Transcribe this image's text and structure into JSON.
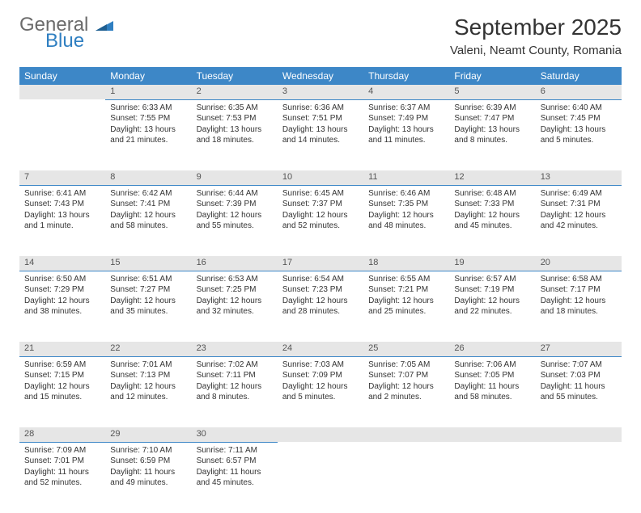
{
  "logo": {
    "general": "General",
    "blue": "Blue"
  },
  "title": "September 2025",
  "location": "Valeni, Neamt County, Romania",
  "colors": {
    "header_bg": "#3d87c7",
    "header_text": "#ffffff",
    "daynum_bg": "#e6e6e6",
    "daynum_border": "#3d87c7",
    "text": "#333333",
    "logo_gray": "#6b6b6b",
    "logo_blue": "#2f7fc1"
  },
  "weekdays": [
    "Sunday",
    "Monday",
    "Tuesday",
    "Wednesday",
    "Thursday",
    "Friday",
    "Saturday"
  ],
  "weeks": [
    [
      null,
      {
        "n": "1",
        "sr": "6:33 AM",
        "ss": "7:55 PM",
        "dl": "13 hours and 21 minutes."
      },
      {
        "n": "2",
        "sr": "6:35 AM",
        "ss": "7:53 PM",
        "dl": "13 hours and 18 minutes."
      },
      {
        "n": "3",
        "sr": "6:36 AM",
        "ss": "7:51 PM",
        "dl": "13 hours and 14 minutes."
      },
      {
        "n": "4",
        "sr": "6:37 AM",
        "ss": "7:49 PM",
        "dl": "13 hours and 11 minutes."
      },
      {
        "n": "5",
        "sr": "6:39 AM",
        "ss": "7:47 PM",
        "dl": "13 hours and 8 minutes."
      },
      {
        "n": "6",
        "sr": "6:40 AM",
        "ss": "7:45 PM",
        "dl": "13 hours and 5 minutes."
      }
    ],
    [
      {
        "n": "7",
        "sr": "6:41 AM",
        "ss": "7:43 PM",
        "dl": "13 hours and 1 minute."
      },
      {
        "n": "8",
        "sr": "6:42 AM",
        "ss": "7:41 PM",
        "dl": "12 hours and 58 minutes."
      },
      {
        "n": "9",
        "sr": "6:44 AM",
        "ss": "7:39 PM",
        "dl": "12 hours and 55 minutes."
      },
      {
        "n": "10",
        "sr": "6:45 AM",
        "ss": "7:37 PM",
        "dl": "12 hours and 52 minutes."
      },
      {
        "n": "11",
        "sr": "6:46 AM",
        "ss": "7:35 PM",
        "dl": "12 hours and 48 minutes."
      },
      {
        "n": "12",
        "sr": "6:48 AM",
        "ss": "7:33 PM",
        "dl": "12 hours and 45 minutes."
      },
      {
        "n": "13",
        "sr": "6:49 AM",
        "ss": "7:31 PM",
        "dl": "12 hours and 42 minutes."
      }
    ],
    [
      {
        "n": "14",
        "sr": "6:50 AM",
        "ss": "7:29 PM",
        "dl": "12 hours and 38 minutes."
      },
      {
        "n": "15",
        "sr": "6:51 AM",
        "ss": "7:27 PM",
        "dl": "12 hours and 35 minutes."
      },
      {
        "n": "16",
        "sr": "6:53 AM",
        "ss": "7:25 PM",
        "dl": "12 hours and 32 minutes."
      },
      {
        "n": "17",
        "sr": "6:54 AM",
        "ss": "7:23 PM",
        "dl": "12 hours and 28 minutes."
      },
      {
        "n": "18",
        "sr": "6:55 AM",
        "ss": "7:21 PM",
        "dl": "12 hours and 25 minutes."
      },
      {
        "n": "19",
        "sr": "6:57 AM",
        "ss": "7:19 PM",
        "dl": "12 hours and 22 minutes."
      },
      {
        "n": "20",
        "sr": "6:58 AM",
        "ss": "7:17 PM",
        "dl": "12 hours and 18 minutes."
      }
    ],
    [
      {
        "n": "21",
        "sr": "6:59 AM",
        "ss": "7:15 PM",
        "dl": "12 hours and 15 minutes."
      },
      {
        "n": "22",
        "sr": "7:01 AM",
        "ss": "7:13 PM",
        "dl": "12 hours and 12 minutes."
      },
      {
        "n": "23",
        "sr": "7:02 AM",
        "ss": "7:11 PM",
        "dl": "12 hours and 8 minutes."
      },
      {
        "n": "24",
        "sr": "7:03 AM",
        "ss": "7:09 PM",
        "dl": "12 hours and 5 minutes."
      },
      {
        "n": "25",
        "sr": "7:05 AM",
        "ss": "7:07 PM",
        "dl": "12 hours and 2 minutes."
      },
      {
        "n": "26",
        "sr": "7:06 AM",
        "ss": "7:05 PM",
        "dl": "11 hours and 58 minutes."
      },
      {
        "n": "27",
        "sr": "7:07 AM",
        "ss": "7:03 PM",
        "dl": "11 hours and 55 minutes."
      }
    ],
    [
      {
        "n": "28",
        "sr": "7:09 AM",
        "ss": "7:01 PM",
        "dl": "11 hours and 52 minutes."
      },
      {
        "n": "29",
        "sr": "7:10 AM",
        "ss": "6:59 PM",
        "dl": "11 hours and 49 minutes."
      },
      {
        "n": "30",
        "sr": "7:11 AM",
        "ss": "6:57 PM",
        "dl": "11 hours and 45 minutes."
      },
      null,
      null,
      null,
      null
    ]
  ],
  "labels": {
    "sunrise": "Sunrise:",
    "sunset": "Sunset:",
    "daylight": "Daylight:"
  }
}
